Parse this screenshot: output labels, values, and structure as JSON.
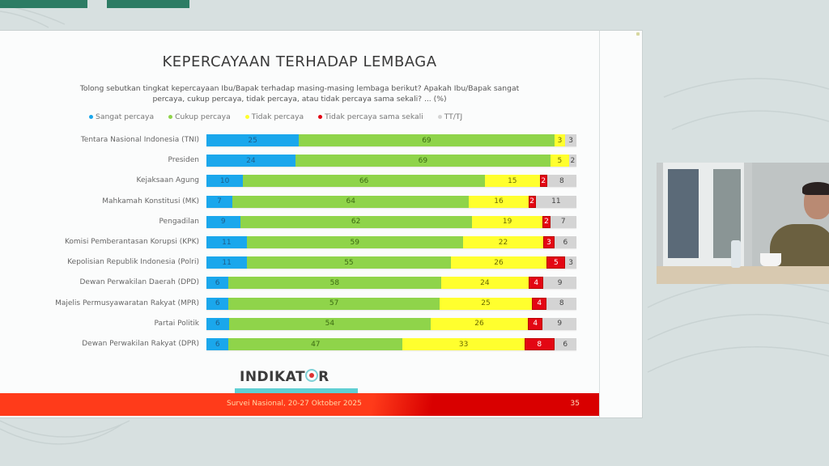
{
  "slide": {
    "title": "KEPERCAYAAN TERHADAP LEMBAGA",
    "question": "Tolong sebutkan tingkat kepercayaan Ibu/Bapak terhadap masing-masing lembaga berikut? Apakah Ibu/Bapak sangat percaya, cukup percaya, tidak percaya, atau tidak percaya sama sekali? ... (%)",
    "logo": {
      "prefix": "INDIKAT",
      "suffix": "R"
    },
    "footer": {
      "text": "Survei Nasional, 20-27 Oktober 2025",
      "page": "35"
    }
  },
  "colors": {
    "sangat": "#1aa7ec",
    "cukup": "#8fd44a",
    "tidak": "#ffff2e",
    "sama_sekali": "#e30613",
    "tt": "#d4d4d4"
  },
  "chart_data": {
    "type": "bar",
    "orientation": "horizontal",
    "stacked": true,
    "title": "KEPERCAYAAN TERHADAP LEMBAGA",
    "subtitle": "Tolong sebutkan tingkat kepercayaan Ibu/Bapak terhadap masing-masing lembaga berikut? Apakah Ibu/Bapak sangat percaya, cukup percaya, tidak percaya, atau tidak percaya sama sekali? ... (%)",
    "xlabel": "",
    "ylabel": "",
    "xlim": [
      0,
      100
    ],
    "grid": false,
    "legend_position": "top",
    "categories": [
      "Tentara Nasional Indonesia (TNI)",
      "Presiden",
      "Kejaksaan Agung",
      "Mahkamah Konstitusi (MK)",
      "Pengadilan",
      "Komisi Pemberantasan Korupsi (KPK)",
      "Kepolisian Republik Indonesia (Polri)",
      "Dewan Perwakilan Daerah (DPD)",
      "Majelis Permusyawaratan Rakyat (MPR)",
      "Partai Politik",
      "Dewan Perwakilan Rakyat (DPR)"
    ],
    "series": [
      {
        "name": "Sangat percaya",
        "values": [
          25,
          24,
          10,
          7,
          9,
          11,
          11,
          6,
          6,
          6,
          6
        ]
      },
      {
        "name": "Cukup percaya",
        "values": [
          69,
          69,
          66,
          64,
          62,
          59,
          55,
          58,
          57,
          54,
          47
        ]
      },
      {
        "name": "Tidak percaya",
        "values": [
          3,
          5,
          15,
          16,
          19,
          22,
          26,
          24,
          25,
          26,
          33
        ]
      },
      {
        "name": "Tidak percaya sama sekali",
        "values": [
          0,
          0,
          2,
          2,
          2,
          3,
          5,
          4,
          4,
          4,
          8
        ]
      },
      {
        "name": "TT/TJ",
        "values": [
          3,
          2,
          8,
          11,
          7,
          6,
          3,
          9,
          8,
          9,
          6
        ]
      }
    ]
  }
}
